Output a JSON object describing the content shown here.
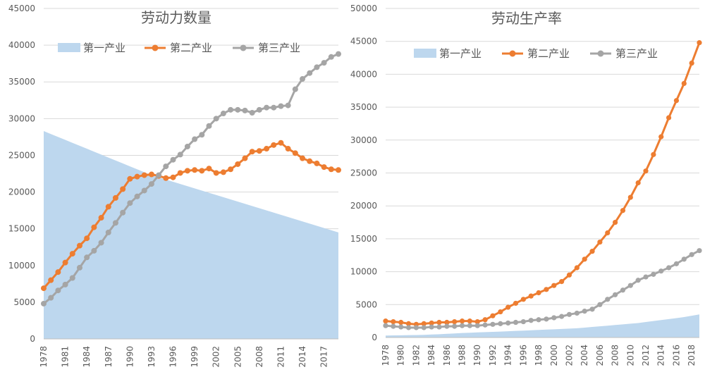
{
  "chart_data": [
    {
      "type": "line",
      "title": "劳动力数量",
      "xlabel": "",
      "ylabel": "",
      "ylim": [
        0,
        45000
      ],
      "yticks": [
        0,
        5000,
        10000,
        15000,
        20000,
        25000,
        30000,
        35000,
        40000,
        45000
      ],
      "x": [
        1978,
        1979,
        1980,
        1981,
        1982,
        1983,
        1984,
        1985,
        1986,
        1987,
        1988,
        1989,
        1990,
        1991,
        1992,
        1993,
        1994,
        1995,
        1996,
        1997,
        1998,
        1999,
        2000,
        2001,
        2002,
        2003,
        2004,
        2005,
        2006,
        2007,
        2008,
        2009,
        2010,
        2011,
        2012,
        2013,
        2014,
        2015,
        2016,
        2017,
        2018,
        2019
      ],
      "xtick_labels": [
        "1978",
        "1981",
        "1984",
        "1987",
        "1990",
        "1993",
        "1996",
        "1999",
        "2002",
        "2005",
        "2008",
        "2011",
        "2014",
        "2017"
      ],
      "grid": true,
      "legend_position": "top",
      "series": [
        {
          "name": "第一产业",
          "style": "area",
          "color": "#bdd7ee",
          "values": [
            28300,
            27900,
            27500,
            27100,
            26700,
            26300,
            25900,
            25500,
            25100,
            24700,
            24300,
            23900,
            23500,
            23100,
            22700,
            22300,
            22000,
            21700,
            21400,
            21100,
            20800,
            20500,
            20200,
            19900,
            19600,
            19300,
            19000,
            18700,
            18400,
            18100,
            17800,
            17500,
            17200,
            16900,
            16600,
            16300,
            16000,
            15700,
            15400,
            15100,
            14800,
            14500
          ]
        },
        {
          "name": "第二产业",
          "style": "line-marker",
          "color": "#ed7d31",
          "values": [
            6900,
            8000,
            9100,
            10400,
            11600,
            12700,
            13700,
            15200,
            16500,
            18000,
            19200,
            20400,
            21800,
            22100,
            22300,
            22400,
            22200,
            21900,
            22000,
            22600,
            22900,
            23000,
            22900,
            23200,
            22600,
            22700,
            23100,
            23800,
            24600,
            25500,
            25600,
            25900,
            26400,
            26700,
            25900,
            25300,
            24600,
            24200,
            23900,
            23400,
            23100,
            23000
          ]
        },
        {
          "name": "第三产业",
          "style": "line-marker",
          "color": "#a5a5a5",
          "values": [
            4800,
            5600,
            6600,
            7400,
            8300,
            9700,
            11100,
            12000,
            13100,
            14500,
            15800,
            17200,
            18500,
            19400,
            20200,
            21100,
            22300,
            23500,
            24400,
            25100,
            26200,
            27200,
            27800,
            29000,
            30000,
            30700,
            31200,
            31200,
            31100,
            30800,
            31200,
            31500,
            31500,
            31700,
            31800,
            34000,
            35400,
            36200,
            37000,
            37600,
            38400,
            38800
          ]
        }
      ]
    },
    {
      "type": "line",
      "title": "劳动生产率",
      "xlabel": "",
      "ylabel": "",
      "ylim": [
        0,
        50000
      ],
      "yticks": [
        0,
        5000,
        10000,
        15000,
        20000,
        25000,
        30000,
        35000,
        40000,
        45000,
        50000
      ],
      "x": [
        1978,
        1979,
        1980,
        1981,
        1982,
        1983,
        1984,
        1985,
        1986,
        1987,
        1988,
        1989,
        1990,
        1991,
        1992,
        1993,
        1994,
        1995,
        1996,
        1997,
        1998,
        1999,
        2000,
        2001,
        2002,
        2003,
        2004,
        2005,
        2006,
        2007,
        2008,
        2009,
        2010,
        2011,
        2012,
        2013,
        2014,
        2015,
        2016,
        2017,
        2018,
        2019
      ],
      "xtick_labels": [
        "1978",
        "1980",
        "1982",
        "1984",
        "1986",
        "1988",
        "1990",
        "1992",
        "1994",
        "1996",
        "1998",
        "2000",
        "2002",
        "2004",
        "2006",
        "2008",
        "2010",
        "2012",
        "2014",
        "2016",
        "2018"
      ],
      "grid": true,
      "legend_position": "top",
      "series": [
        {
          "name": "第一产业",
          "style": "area",
          "color": "#bdd7ee",
          "values": [
            300,
            320,
            340,
            360,
            380,
            400,
            450,
            500,
            560,
            620,
            680,
            720,
            780,
            820,
            860,
            900,
            950,
            1000,
            1050,
            1100,
            1150,
            1200,
            1250,
            1300,
            1350,
            1400,
            1500,
            1600,
            1700,
            1800,
            1900,
            2000,
            2100,
            2200,
            2350,
            2500,
            2650,
            2800,
            2950,
            3100,
            3300,
            3500
          ]
        },
        {
          "name": "第二产业",
          "style": "line-marker",
          "color": "#ed7d31",
          "values": [
            2500,
            2400,
            2300,
            2100,
            2000,
            2100,
            2200,
            2300,
            2300,
            2400,
            2500,
            2500,
            2400,
            2700,
            3300,
            3900,
            4600,
            5200,
            5800,
            6300,
            6800,
            7300,
            7900,
            8500,
            9500,
            10600,
            11900,
            13100,
            14500,
            15900,
            17500,
            19300,
            21300,
            23500,
            25300,
            27800,
            30500,
            33400,
            36000,
            38600,
            41700,
            44800
          ]
        },
        {
          "name": "第三产业",
          "style": "line-marker",
          "color": "#a5a5a5",
          "values": [
            1800,
            1700,
            1600,
            1500,
            1500,
            1500,
            1600,
            1600,
            1700,
            1700,
            1800,
            1800,
            1800,
            1900,
            2000,
            2100,
            2200,
            2300,
            2400,
            2600,
            2700,
            2800,
            3000,
            3200,
            3500,
            3700,
            4000,
            4300,
            5000,
            5800,
            6500,
            7200,
            7900,
            8700,
            9200,
            9600,
            10100,
            10600,
            11200,
            11900,
            12600,
            13200
          ]
        }
      ]
    }
  ]
}
